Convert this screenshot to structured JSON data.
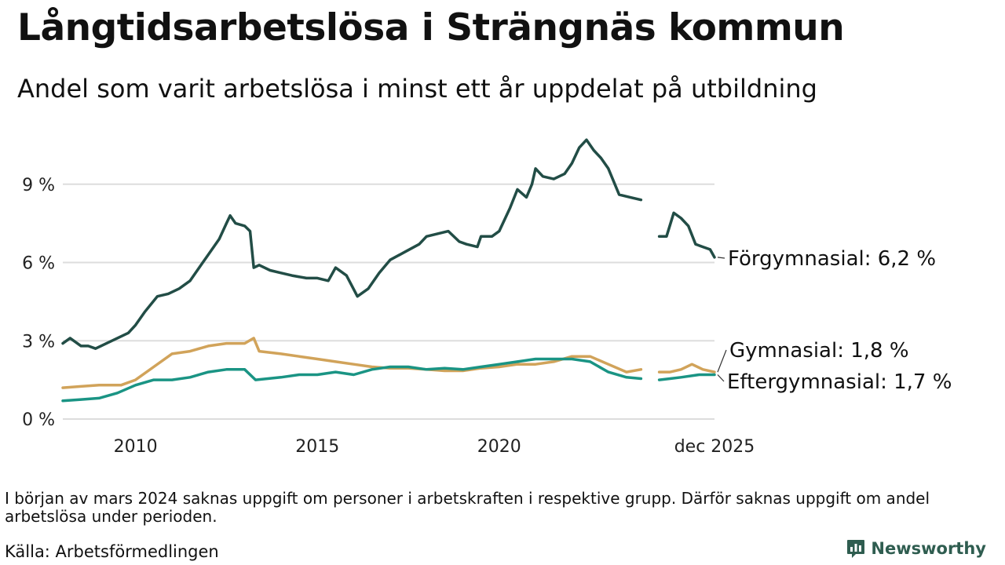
{
  "header": {
    "title": "Långtidsarbetslösa i Strängnäs kommun",
    "subtitle": "Andel som varit arbetslösa i minst ett år uppdelat på utbildning"
  },
  "footer": {
    "note": "I början av mars 2024 saknas uppgift om personer i arbetskraften i respektive grupp. Därför saknas uppgift om andel arbetslösa under perioden.",
    "source": "Källa: Arbetsförmedlingen",
    "brand": "Newsworthy"
  },
  "colors": {
    "forgymnasial": "#224d46",
    "gymnasial": "#d1a35a",
    "eftergymnasial": "#1a9484",
    "grid": "#dddddd",
    "brand": "#2f5d50"
  },
  "chart_data": {
    "type": "line",
    "title": "Långtidsarbetslösa i Strängnäs kommun",
    "subtitle": "Andel som varit arbetslösa i minst ett år uppdelat på utbildning",
    "xlabel": "",
    "ylabel": "",
    "x_unit": "year",
    "xlim": [
      2008.0,
      2025.92
    ],
    "ylim": [
      0,
      11
    ],
    "y_ticks": [
      0,
      3,
      6,
      9
    ],
    "y_tick_labels": [
      "0 %",
      "3 %",
      "6 %",
      "9 %"
    ],
    "x_ticks": [
      2010,
      2015,
      2020,
      2025.92
    ],
    "x_tick_labels": [
      "2010",
      "2015",
      "2020",
      "dec 2025"
    ],
    "gap": [
      2023.9,
      2024.4
    ],
    "grid": true,
    "series": [
      {
        "name": "Förgymnasial",
        "label": "Förgymnasial: 6,2 %",
        "color_key": "forgymnasial",
        "points": [
          [
            2008.0,
            2.9
          ],
          [
            2008.2,
            3.1
          ],
          [
            2008.5,
            2.8
          ],
          [
            2008.7,
            2.8
          ],
          [
            2008.9,
            2.7
          ],
          [
            2009.2,
            2.9
          ],
          [
            2009.5,
            3.1
          ],
          [
            2009.8,
            3.3
          ],
          [
            2010.0,
            3.6
          ],
          [
            2010.25,
            4.1
          ],
          [
            2010.6,
            4.7
          ],
          [
            2010.9,
            4.8
          ],
          [
            2011.2,
            5.0
          ],
          [
            2011.5,
            5.3
          ],
          [
            2011.8,
            5.9
          ],
          [
            2012.0,
            6.3
          ],
          [
            2012.3,
            6.9
          ],
          [
            2012.5,
            7.5
          ],
          [
            2012.6,
            7.8
          ],
          [
            2012.75,
            7.5
          ],
          [
            2013.0,
            7.4
          ],
          [
            2013.15,
            7.2
          ],
          [
            2013.25,
            5.8
          ],
          [
            2013.4,
            5.9
          ],
          [
            2013.7,
            5.7
          ],
          [
            2014.0,
            5.6
          ],
          [
            2014.3,
            5.5
          ],
          [
            2014.7,
            5.4
          ],
          [
            2015.0,
            5.4
          ],
          [
            2015.3,
            5.3
          ],
          [
            2015.5,
            5.8
          ],
          [
            2015.8,
            5.5
          ],
          [
            2016.1,
            4.7
          ],
          [
            2016.4,
            5.0
          ],
          [
            2016.7,
            5.6
          ],
          [
            2017.0,
            6.1
          ],
          [
            2017.4,
            6.4
          ],
          [
            2017.8,
            6.7
          ],
          [
            2018.0,
            7.0
          ],
          [
            2018.3,
            7.1
          ],
          [
            2018.6,
            7.2
          ],
          [
            2018.9,
            6.8
          ],
          [
            2019.1,
            6.7
          ],
          [
            2019.4,
            6.6
          ],
          [
            2019.5,
            7.0
          ],
          [
            2019.8,
            7.0
          ],
          [
            2020.0,
            7.2
          ],
          [
            2020.3,
            8.1
          ],
          [
            2020.5,
            8.8
          ],
          [
            2020.75,
            8.5
          ],
          [
            2020.9,
            9.0
          ],
          [
            2021.0,
            9.6
          ],
          [
            2021.2,
            9.3
          ],
          [
            2021.5,
            9.2
          ],
          [
            2021.8,
            9.4
          ],
          [
            2022.0,
            9.8
          ],
          [
            2022.2,
            10.4
          ],
          [
            2022.4,
            10.7
          ],
          [
            2022.6,
            10.3
          ],
          [
            2022.8,
            10.0
          ],
          [
            2023.0,
            9.6
          ],
          [
            2023.3,
            8.6
          ],
          [
            2023.6,
            8.5
          ],
          [
            2023.9,
            8.4
          ],
          [
            2024.4,
            7.0
          ],
          [
            2024.6,
            7.0
          ],
          [
            2024.8,
            7.9
          ],
          [
            2025.0,
            7.7
          ],
          [
            2025.2,
            7.4
          ],
          [
            2025.4,
            6.7
          ],
          [
            2025.6,
            6.6
          ],
          [
            2025.8,
            6.5
          ],
          [
            2025.92,
            6.2
          ]
        ]
      },
      {
        "name": "Gymnasial",
        "label": "Gymnasial: 1,8 %",
        "color_key": "gymnasial",
        "points": [
          [
            2008.0,
            1.2
          ],
          [
            2008.5,
            1.25
          ],
          [
            2009.0,
            1.3
          ],
          [
            2009.3,
            1.3
          ],
          [
            2009.6,
            1.3
          ],
          [
            2010.0,
            1.5
          ],
          [
            2010.5,
            2.0
          ],
          [
            2011.0,
            2.5
          ],
          [
            2011.5,
            2.6
          ],
          [
            2012.0,
            2.8
          ],
          [
            2012.5,
            2.9
          ],
          [
            2013.0,
            2.9
          ],
          [
            2013.25,
            3.1
          ],
          [
            2013.4,
            2.6
          ],
          [
            2014.0,
            2.5
          ],
          [
            2014.5,
            2.4
          ],
          [
            2015.0,
            2.3
          ],
          [
            2015.5,
            2.2
          ],
          [
            2016.0,
            2.1
          ],
          [
            2016.5,
            2.0
          ],
          [
            2017.0,
            1.95
          ],
          [
            2017.5,
            1.95
          ],
          [
            2018.0,
            1.9
          ],
          [
            2018.5,
            1.85
          ],
          [
            2019.0,
            1.85
          ],
          [
            2019.5,
            1.95
          ],
          [
            2020.0,
            2.0
          ],
          [
            2020.5,
            2.1
          ],
          [
            2021.0,
            2.1
          ],
          [
            2021.5,
            2.2
          ],
          [
            2022.0,
            2.4
          ],
          [
            2022.5,
            2.4
          ],
          [
            2023.0,
            2.1
          ],
          [
            2023.5,
            1.8
          ],
          [
            2023.9,
            1.9
          ],
          [
            2024.4,
            1.8
          ],
          [
            2024.7,
            1.8
          ],
          [
            2025.0,
            1.9
          ],
          [
            2025.3,
            2.1
          ],
          [
            2025.6,
            1.9
          ],
          [
            2025.92,
            1.8
          ]
        ]
      },
      {
        "name": "Eftergymnasial",
        "label": "Eftergymnasial: 1,7 %",
        "color_key": "eftergymnasial",
        "points": [
          [
            2008.0,
            0.7
          ],
          [
            2008.5,
            0.75
          ],
          [
            2009.0,
            0.8
          ],
          [
            2009.5,
            1.0
          ],
          [
            2010.0,
            1.3
          ],
          [
            2010.5,
            1.5
          ],
          [
            2011.0,
            1.5
          ],
          [
            2011.5,
            1.6
          ],
          [
            2012.0,
            1.8
          ],
          [
            2012.5,
            1.9
          ],
          [
            2013.0,
            1.9
          ],
          [
            2013.3,
            1.5
          ],
          [
            2014.0,
            1.6
          ],
          [
            2014.5,
            1.7
          ],
          [
            2015.0,
            1.7
          ],
          [
            2015.5,
            1.8
          ],
          [
            2016.0,
            1.7
          ],
          [
            2016.5,
            1.9
          ],
          [
            2017.0,
            2.0
          ],
          [
            2017.5,
            2.0
          ],
          [
            2018.0,
            1.9
          ],
          [
            2018.5,
            1.95
          ],
          [
            2019.0,
            1.9
          ],
          [
            2019.5,
            2.0
          ],
          [
            2020.0,
            2.1
          ],
          [
            2020.5,
            2.2
          ],
          [
            2021.0,
            2.3
          ],
          [
            2021.5,
            2.3
          ],
          [
            2022.0,
            2.3
          ],
          [
            2022.5,
            2.2
          ],
          [
            2023.0,
            1.8
          ],
          [
            2023.5,
            1.6
          ],
          [
            2023.9,
            1.55
          ],
          [
            2024.4,
            1.5
          ],
          [
            2024.7,
            1.55
          ],
          [
            2025.0,
            1.6
          ],
          [
            2025.5,
            1.7
          ],
          [
            2025.92,
            1.7
          ]
        ]
      }
    ]
  }
}
